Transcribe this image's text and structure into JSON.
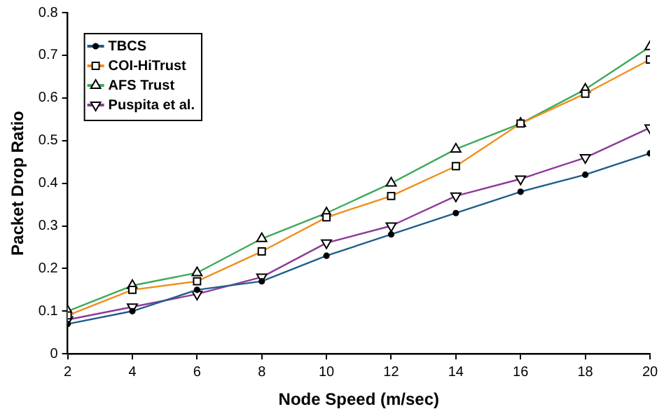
{
  "chart_data": {
    "type": "line",
    "xlabel": "Node Speed (m/sec)",
    "ylabel": "Packet Drop Ratio",
    "x": [
      2,
      4,
      6,
      8,
      10,
      12,
      14,
      16,
      18,
      20
    ],
    "series": [
      {
        "name": "TBCS",
        "color": "#1f5f8b",
        "marker": "circle",
        "values": [
          0.07,
          0.1,
          0.15,
          0.17,
          0.23,
          0.28,
          0.33,
          0.38,
          0.42,
          0.47
        ]
      },
      {
        "name": "COI-HiTrust",
        "color": "#f28e1c",
        "marker": "square",
        "values": [
          0.09,
          0.15,
          0.17,
          0.24,
          0.32,
          0.37,
          0.44,
          0.54,
          0.61,
          0.69
        ]
      },
      {
        "name": "AFS Trust",
        "color": "#3daa5b",
        "marker": "triangle",
        "values": [
          0.1,
          0.16,
          0.19,
          0.27,
          0.33,
          0.4,
          0.48,
          0.54,
          0.62,
          0.72
        ]
      },
      {
        "name": "Puspita et al.",
        "color": "#8e3a9a",
        "marker": "triangle-down",
        "values": [
          0.08,
          0.11,
          0.14,
          0.18,
          0.26,
          0.3,
          0.37,
          0.41,
          0.46,
          0.53
        ]
      }
    ],
    "xlim": [
      2,
      20
    ],
    "xticks": [
      2,
      4,
      6,
      8,
      10,
      12,
      14,
      16,
      18,
      20
    ],
    "ylim": [
      0,
      0.8
    ],
    "yticks": [
      0,
      0.1,
      0.2,
      0.3,
      0.4,
      0.5,
      0.6,
      0.7,
      0.8
    ],
    "grid": false,
    "legend": "top left"
  }
}
